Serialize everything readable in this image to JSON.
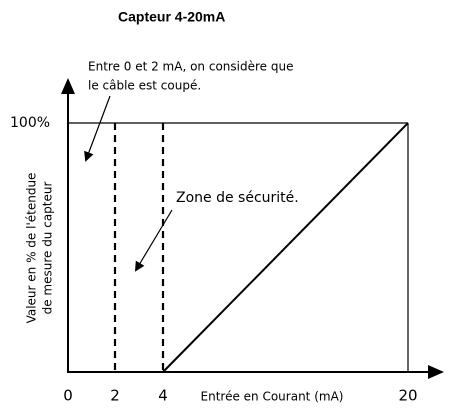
{
  "title": "Capteur 4-20mA",
  "y_axis_label": [
    "Valeur en % de l'étendue",
    "de mesure du capteur"
  ],
  "x_axis_label": "Entrée en Courant (mA)",
  "y_tick": "100%",
  "x_ticks": [
    "0",
    "2",
    "4",
    "20"
  ],
  "annotations": [
    {
      "lines": [
        "Entre 0 et 2 mA, on considère que",
        "le câble est coupé."
      ]
    },
    {
      "lines": [
        "Zone de sécurité."
      ]
    }
  ]
}
